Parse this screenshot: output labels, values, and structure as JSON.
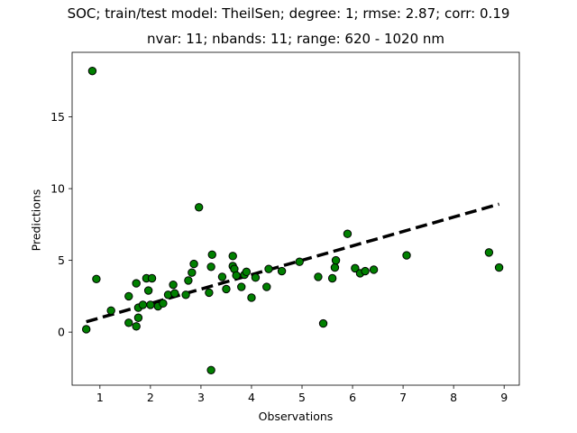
{
  "chart_data": {
    "type": "scatter",
    "title": "SOC; train/test model: TheilSen; degree: 1; rmse: 2.87; corr: 0.19",
    "subtitle": "nvar: 11; nbands: 11; range: 620 - 1020 nm",
    "xlabel": "Observations",
    "ylabel": "Predictions",
    "xlim": [
      0.45,
      9.3
    ],
    "ylim": [
      -3.7,
      19.5
    ],
    "xticks": [
      1,
      2,
      3,
      4,
      5,
      6,
      7,
      8,
      9
    ],
    "yticks": [
      0,
      5,
      10,
      15
    ],
    "grid": false,
    "legend": "none",
    "point_color": "#008000",
    "point_edge_color": "#000000",
    "line_color": "#000000",
    "series": [
      {
        "points": [
          [
            0.73,
            0.2
          ],
          [
            0.85,
            18.2
          ],
          [
            0.93,
            3.7
          ],
          [
            1.22,
            1.5
          ],
          [
            1.57,
            2.5
          ],
          [
            1.57,
            0.65
          ],
          [
            1.72,
            3.4
          ],
          [
            1.72,
            0.4
          ],
          [
            1.76,
            1.0
          ],
          [
            1.76,
            1.7
          ],
          [
            1.85,
            1.9
          ],
          [
            1.92,
            3.75
          ],
          [
            1.96,
            2.9
          ],
          [
            2.0,
            1.9
          ],
          [
            2.03,
            3.75
          ],
          [
            2.15,
            1.8
          ],
          [
            2.25,
            2.0
          ],
          [
            2.35,
            2.6
          ],
          [
            2.45,
            3.3
          ],
          [
            2.48,
            2.7
          ],
          [
            2.7,
            2.6
          ],
          [
            2.75,
            3.6
          ],
          [
            2.82,
            4.15
          ],
          [
            2.86,
            4.75
          ],
          [
            2.96,
            8.7
          ],
          [
            3.16,
            2.75
          ],
          [
            3.2,
            4.55
          ],
          [
            3.22,
            5.4
          ],
          [
            3.2,
            -2.65
          ],
          [
            3.42,
            3.85
          ],
          [
            3.5,
            3.0
          ],
          [
            3.63,
            5.3
          ],
          [
            3.63,
            4.6
          ],
          [
            3.66,
            4.4
          ],
          [
            3.7,
            3.95
          ],
          [
            3.8,
            3.15
          ],
          [
            3.86,
            4.0
          ],
          [
            3.9,
            4.2
          ],
          [
            4.0,
            2.4
          ],
          [
            4.08,
            3.8
          ],
          [
            4.3,
            3.15
          ],
          [
            4.34,
            4.4
          ],
          [
            4.6,
            4.25
          ],
          [
            4.95,
            4.9
          ],
          [
            5.32,
            3.85
          ],
          [
            5.42,
            0.6
          ],
          [
            5.6,
            3.75
          ],
          [
            5.65,
            4.5
          ],
          [
            5.67,
            5.0
          ],
          [
            5.9,
            6.85
          ],
          [
            6.05,
            4.45
          ],
          [
            6.15,
            4.1
          ],
          [
            6.25,
            4.25
          ],
          [
            6.42,
            4.35
          ],
          [
            7.07,
            5.35
          ],
          [
            8.7,
            5.55
          ],
          [
            8.9,
            4.5
          ]
        ]
      }
    ],
    "fit_line": {
      "style": "dashed",
      "points": [
        [
          0.73,
          0.72
        ],
        [
          8.9,
          8.92
        ]
      ]
    }
  }
}
